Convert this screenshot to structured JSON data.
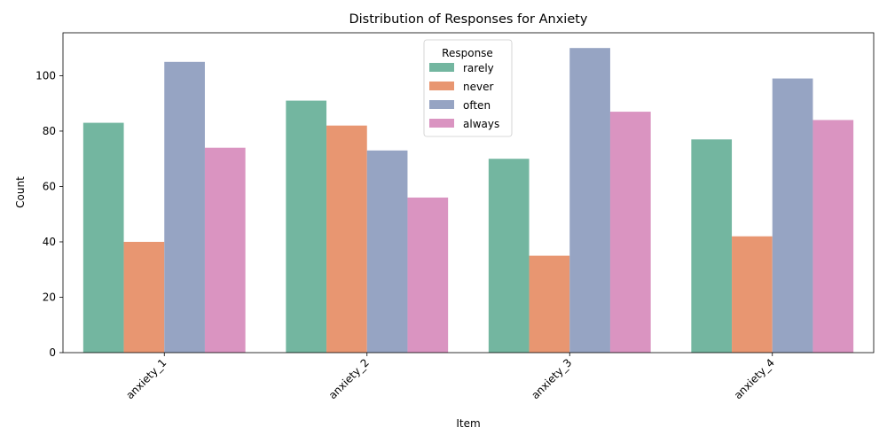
{
  "chart_data": {
    "type": "bar",
    "title": "Distribution of Responses for Anxiety",
    "xlabel": "Item",
    "ylabel": "Count",
    "categories": [
      "anxiety_1",
      "anxiety_2",
      "anxiety_3",
      "anxiety_4"
    ],
    "ylim": [
      0,
      115.5
    ],
    "yticks": [
      0,
      20,
      40,
      60,
      80,
      100
    ],
    "legend_title": "Response",
    "legend_position": "top-center",
    "grid": false,
    "series": [
      {
        "name": "rarely",
        "color": "#73b6a0",
        "values": [
          83,
          91,
          70,
          77
        ]
      },
      {
        "name": "never",
        "color": "#e89671",
        "values": [
          40,
          82,
          35,
          42
        ]
      },
      {
        "name": "often",
        "color": "#96a4c3",
        "values": [
          105,
          73,
          110,
          99
        ]
      },
      {
        "name": "always",
        "color": "#da94c1",
        "values": [
          74,
          56,
          87,
          84
        ]
      }
    ]
  }
}
